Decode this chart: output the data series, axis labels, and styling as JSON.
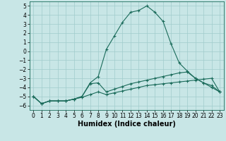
{
  "xlabel": "Humidex (Indice chaleur)",
  "xlim": [
    -0.5,
    23.5
  ],
  "ylim": [
    -6.5,
    5.5
  ],
  "yticks": [
    -6,
    -5,
    -4,
    -3,
    -2,
    -1,
    0,
    1,
    2,
    3,
    4,
    5
  ],
  "xticks": [
    0,
    1,
    2,
    3,
    4,
    5,
    6,
    7,
    8,
    9,
    10,
    11,
    12,
    13,
    14,
    15,
    16,
    17,
    18,
    19,
    20,
    21,
    22,
    23
  ],
  "background_color": "#c8e6e6",
  "grid_color": "#a0cccc",
  "line_color": "#1a6b5a",
  "line1_x": [
    0,
    1,
    2,
    3,
    4,
    5,
    6,
    7,
    8,
    9,
    10,
    11,
    12,
    13,
    14,
    15,
    16,
    17,
    18,
    19,
    20,
    21,
    22,
    23
  ],
  "line1_y": [
    -5.0,
    -5.8,
    -5.5,
    -5.5,
    -5.5,
    -5.3,
    -5.0,
    -3.5,
    -2.8,
    0.2,
    1.7,
    3.2,
    4.3,
    4.5,
    5.0,
    4.3,
    3.3,
    0.8,
    -1.3,
    -2.2,
    -3.0,
    -3.5,
    -3.8,
    -4.5
  ],
  "line2_x": [
    0,
    1,
    2,
    3,
    4,
    5,
    6,
    7,
    8,
    9,
    10,
    11,
    12,
    13,
    14,
    15,
    16,
    17,
    18,
    19,
    20,
    21,
    22,
    23
  ],
  "line2_y": [
    -5.0,
    -5.8,
    -5.5,
    -5.5,
    -5.5,
    -5.3,
    -5.0,
    -3.6,
    -3.5,
    -4.5,
    -4.2,
    -3.9,
    -3.6,
    -3.4,
    -3.2,
    -3.0,
    -2.8,
    -2.6,
    -2.4,
    -2.3,
    -3.0,
    -3.5,
    -4.0,
    -4.5
  ],
  "line3_x": [
    0,
    1,
    2,
    3,
    4,
    5,
    6,
    7,
    8,
    9,
    10,
    11,
    12,
    13,
    14,
    15,
    16,
    17,
    18,
    19,
    20,
    21,
    22,
    23
  ],
  "line3_y": [
    -5.0,
    -5.8,
    -5.5,
    -5.5,
    -5.5,
    -5.3,
    -5.1,
    -4.8,
    -4.5,
    -4.8,
    -4.6,
    -4.4,
    -4.2,
    -4.0,
    -3.8,
    -3.7,
    -3.6,
    -3.5,
    -3.4,
    -3.3,
    -3.2,
    -3.1,
    -3.0,
    -4.5
  ],
  "tick_fontsize": 5.5,
  "xlabel_fontsize": 7.0
}
